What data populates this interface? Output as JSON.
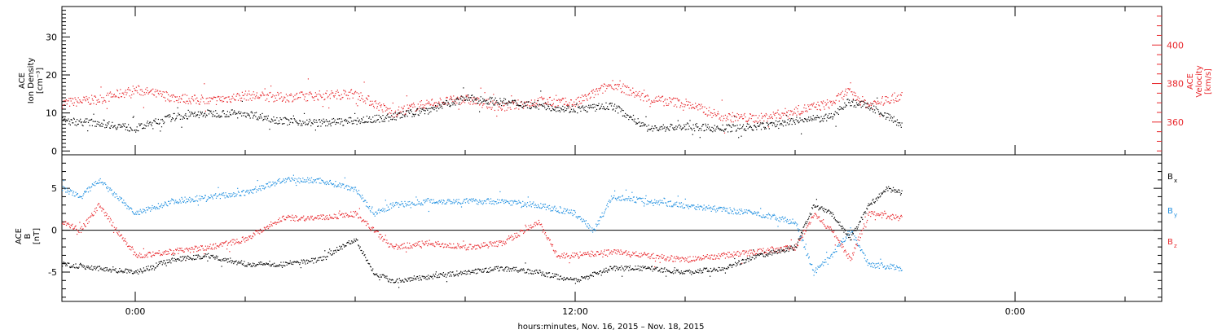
{
  "chart_data": [
    {
      "type": "scatter",
      "panel": "top",
      "ylabel_left": [
        "ACE",
        "Ion Density",
        "[cm⁻³]"
      ],
      "ylabel_right": [
        "ACE",
        "Velocity",
        "[km/s]"
      ],
      "ylim_left": [
        -1,
        38
      ],
      "ylim_right": [
        343,
        420
      ],
      "yticks_left": [
        "0",
        "10",
        "20",
        "30"
      ],
      "yticks_right": [
        "360",
        "380",
        "400"
      ],
      "xlim_hours": [
        -2,
        28
      ],
      "series": [
        {
          "axis": "left",
          "color": "#000000",
          "x": [
            -2,
            -1,
            0,
            1,
            2,
            3,
            4,
            5,
            6,
            7,
            8,
            9,
            10,
            11,
            12,
            13,
            14,
            15,
            16,
            17,
            18,
            19,
            19.4,
            20,
            20.9
          ],
          "y": [
            8,
            7.5,
            6,
            9,
            10,
            10,
            8,
            7.5,
            8,
            9,
            11,
            14,
            13,
            12,
            11,
            12,
            6,
            6.5,
            6,
            6.5,
            8,
            9,
            13,
            12,
            7
          ]
        },
        {
          "axis": "right",
          "color": "#e8262b",
          "x": [
            -2,
            -1,
            0,
            1,
            2,
            3,
            4,
            5,
            6,
            7,
            8,
            9,
            10,
            11,
            12,
            13,
            14,
            15,
            16,
            17,
            18,
            19,
            19.4,
            20,
            20.9
          ],
          "y": [
            370,
            372,
            377,
            373,
            371,
            374,
            373,
            374,
            375,
            365,
            370,
            372,
            368,
            371,
            370,
            380,
            372,
            370,
            363,
            362,
            366,
            370,
            376,
            369,
            374
          ]
        }
      ]
    },
    {
      "type": "scatter",
      "panel": "bottom",
      "ylabel_left": [
        "ACE",
        "B",
        "[nT]"
      ],
      "ylim": [
        -8.5,
        9
      ],
      "yticks": [
        "-5",
        "0",
        "5"
      ],
      "xlim_hours": [
        -2,
        28
      ],
      "xticks": [
        "0:00",
        "12:00",
        "0:00"
      ],
      "xtick_hours": [
        0,
        12,
        24
      ],
      "xlabel": "hours:minutes, Nov. 16, 2015 – Nov. 18, 2015",
      "series": [
        {
          "name": "Bx",
          "color": "#000000",
          "x": [
            -2,
            -1,
            0,
            1,
            2,
            3,
            4,
            5,
            6,
            6.5,
            7,
            8,
            9,
            10,
            11,
            11.5,
            12,
            13,
            14,
            15,
            16,
            17,
            18,
            18.5,
            19,
            19.5,
            20,
            20.5,
            20.9
          ],
          "y": [
            -4,
            -4.5,
            -5,
            -3.5,
            -3,
            -4,
            -4,
            -3.5,
            -1,
            -5,
            -6,
            -5.5,
            -5,
            -4.5,
            -5,
            -5.5,
            -6,
            -4.5,
            -4.5,
            -5,
            -4.5,
            -3,
            -2,
            3,
            2,
            -1,
            3,
            5,
            4.5
          ]
        },
        {
          "name": "By",
          "color": "#1f8fe0",
          "x": [
            -2,
            -1.5,
            -1,
            0,
            1,
            2,
            3,
            4,
            5,
            6,
            6.5,
            7,
            8,
            9,
            10,
            11,
            12,
            12.5,
            13,
            14,
            15,
            16,
            17,
            18,
            18.5,
            19,
            19.5,
            20,
            20.9
          ],
          "y": [
            5,
            4,
            6,
            2,
            3.5,
            4,
            4.5,
            6,
            6,
            5,
            2,
            3,
            3.5,
            3.5,
            3.5,
            3,
            2,
            0,
            4,
            3.5,
            3,
            2.5,
            2,
            1,
            -5,
            -3,
            0,
            -4,
            -4.5
          ]
        },
        {
          "name": "Bz",
          "color": "#e8262b",
          "x": [
            -2,
            -1.5,
            -1,
            0,
            1,
            2,
            3,
            4,
            5,
            6,
            6.5,
            7,
            8,
            9,
            10,
            11,
            11.5,
            12,
            13,
            14,
            15,
            16,
            17,
            18,
            18.5,
            19,
            19.5,
            20,
            20.9
          ],
          "y": [
            1,
            0,
            3,
            -3,
            -2.5,
            -2,
            -1,
            1.5,
            1.5,
            2,
            0,
            -2,
            -1.5,
            -2,
            -1.5,
            1,
            -3,
            -3,
            -2.5,
            -3,
            -3.5,
            -3,
            -2.5,
            -2,
            2,
            0,
            -3.5,
            2,
            1.5
          ]
        }
      ],
      "legend": {
        "placement": "right",
        "labels": [
          "B",
          "B",
          "B"
        ],
        "subs": [
          "x",
          "y",
          "z"
        ]
      }
    }
  ]
}
